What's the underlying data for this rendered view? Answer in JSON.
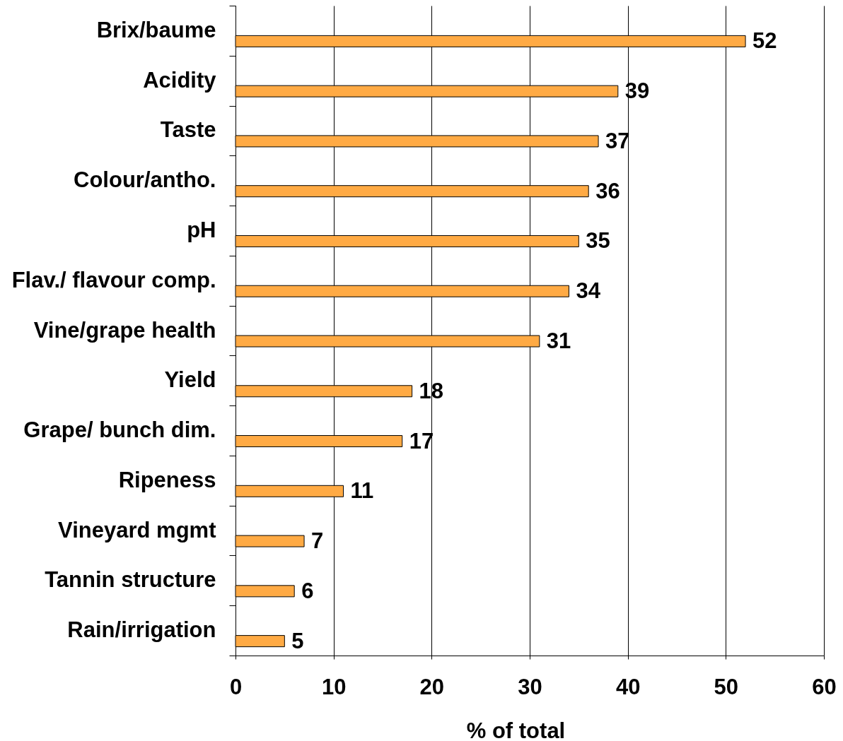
{
  "chart_data": {
    "type": "bar",
    "orientation": "horizontal",
    "xlabel": "% of total",
    "categories": [
      "Brix/baume",
      "Acidity",
      "Taste",
      "Colour/antho.",
      "pH",
      "Flav./ flavour comp.",
      "Vine/grape health",
      "Yield",
      "Grape/ bunch dim.",
      "Ripeness",
      "Vineyard mgmt",
      "Tannin structure",
      "Rain/irrigation"
    ],
    "values": [
      52,
      39,
      37,
      36,
      35,
      34,
      31,
      18,
      17,
      11,
      7,
      6,
      5
    ],
    "color": "#ffaa44",
    "xlim": [
      0,
      60
    ],
    "xticks": [
      0,
      10,
      20,
      30,
      40,
      50,
      60
    ],
    "grid": "x",
    "data_labels": true
  }
}
